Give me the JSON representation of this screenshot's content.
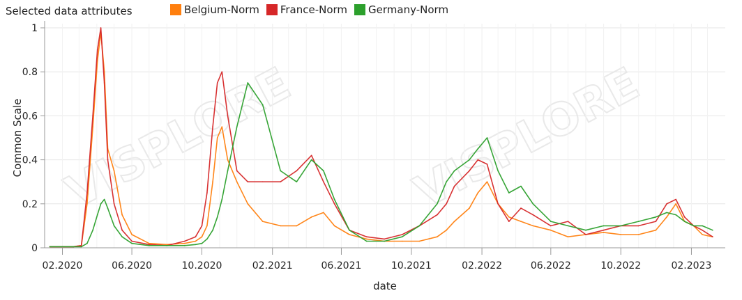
{
  "chart_data": {
    "type": "line",
    "title": "Selected data attributes",
    "xlabel": "date",
    "ylabel": "Common Scale",
    "ylim": [
      0,
      1
    ],
    "yticks": [
      "0",
      "0.2",
      "0.4",
      "0.6",
      "0.8",
      "1"
    ],
    "xlim": [
      "2020-01-01",
      "2023-04-01"
    ],
    "xticks": [
      "02.2020",
      "06.2020",
      "10.2020",
      "02.2021",
      "06.2021",
      "10.2021",
      "02.2022",
      "06.2022",
      "10.2022",
      "02.2023"
    ],
    "grid": true,
    "legend_position": "top",
    "watermark": "VISPLORE",
    "series": [
      {
        "name": "Belgium-Norm",
        "color": "#ff7f0e",
        "x": [
          "2020-01-10",
          "2020-02-20",
          "2020-03-05",
          "2020-03-15",
          "2020-03-25",
          "2020-04-02",
          "2020-04-08",
          "2020-04-14",
          "2020-04-20",
          "2020-05-01",
          "2020-05-15",
          "2020-06-01",
          "2020-07-01",
          "2020-08-01",
          "2020-09-01",
          "2020-09-20",
          "2020-10-01",
          "2020-10-10",
          "2020-10-20",
          "2020-10-28",
          "2020-11-05",
          "2020-11-15",
          "2020-12-01",
          "2020-12-20",
          "2021-01-15",
          "2021-02-15",
          "2021-03-15",
          "2021-04-10",
          "2021-05-01",
          "2021-05-20",
          "2021-06-15",
          "2021-07-15",
          "2021-08-15",
          "2021-09-15",
          "2021-10-15",
          "2021-11-15",
          "2021-12-01",
          "2021-12-15",
          "2022-01-10",
          "2022-01-25",
          "2022-02-10",
          "2022-03-01",
          "2022-03-20",
          "2022-04-10",
          "2022-05-01",
          "2022-06-01",
          "2022-07-01",
          "2022-08-01",
          "2022-09-01",
          "2022-10-01",
          "2022-11-01",
          "2022-12-01",
          "2022-12-20",
          "2023-01-05",
          "2023-01-20",
          "2023-02-05",
          "2023-02-20",
          "2023-03-10"
        ],
        "values": [
          0.005,
          0.005,
          0.01,
          0.2,
          0.55,
          0.85,
          0.98,
          0.8,
          0.45,
          0.35,
          0.15,
          0.06,
          0.02,
          0.015,
          0.02,
          0.03,
          0.05,
          0.1,
          0.3,
          0.5,
          0.55,
          0.4,
          0.3,
          0.2,
          0.12,
          0.1,
          0.1,
          0.14,
          0.16,
          0.1,
          0.06,
          0.04,
          0.03,
          0.03,
          0.03,
          0.05,
          0.08,
          0.12,
          0.18,
          0.25,
          0.3,
          0.2,
          0.14,
          0.12,
          0.1,
          0.08,
          0.05,
          0.06,
          0.07,
          0.06,
          0.06,
          0.08,
          0.14,
          0.2,
          0.12,
          0.1,
          0.06,
          0.05
        ]
      },
      {
        "name": "France-Norm",
        "color": "#d62728",
        "x": [
          "2020-01-10",
          "2020-02-20",
          "2020-03-05",
          "2020-03-15",
          "2020-03-25",
          "2020-04-02",
          "2020-04-08",
          "2020-04-14",
          "2020-04-20",
          "2020-05-01",
          "2020-05-15",
          "2020-06-01",
          "2020-07-01",
          "2020-08-01",
          "2020-09-01",
          "2020-09-20",
          "2020-10-01",
          "2020-10-10",
          "2020-10-20",
          "2020-10-28",
          "2020-11-05",
          "2020-11-15",
          "2020-12-01",
          "2020-12-20",
          "2021-01-15",
          "2021-02-15",
          "2021-03-15",
          "2021-04-10",
          "2021-05-01",
          "2021-05-20",
          "2021-06-15",
          "2021-07-15",
          "2021-08-15",
          "2021-09-15",
          "2021-10-15",
          "2021-11-15",
          "2021-12-01",
          "2021-12-15",
          "2022-01-10",
          "2022-01-25",
          "2022-02-10",
          "2022-03-01",
          "2022-03-20",
          "2022-04-10",
          "2022-05-01",
          "2022-06-01",
          "2022-07-01",
          "2022-08-01",
          "2022-09-01",
          "2022-10-01",
          "2022-11-01",
          "2022-12-01",
          "2022-12-20",
          "2023-01-05",
          "2023-01-20",
          "2023-02-05",
          "2023-02-20",
          "2023-03-10"
        ],
        "values": [
          0.005,
          0.005,
          0.01,
          0.25,
          0.6,
          0.9,
          1.0,
          0.75,
          0.4,
          0.2,
          0.08,
          0.03,
          0.015,
          0.01,
          0.03,
          0.05,
          0.1,
          0.25,
          0.55,
          0.75,
          0.8,
          0.6,
          0.35,
          0.3,
          0.3,
          0.3,
          0.35,
          0.42,
          0.3,
          0.2,
          0.08,
          0.05,
          0.04,
          0.06,
          0.1,
          0.15,
          0.2,
          0.28,
          0.35,
          0.4,
          0.38,
          0.2,
          0.12,
          0.18,
          0.15,
          0.1,
          0.12,
          0.06,
          0.08,
          0.1,
          0.1,
          0.12,
          0.2,
          0.22,
          0.14,
          0.1,
          0.08,
          0.05
        ]
      },
      {
        "name": "Germany-Norm",
        "color": "#2ca02c",
        "x": [
          "2020-01-10",
          "2020-02-20",
          "2020-03-05",
          "2020-03-15",
          "2020-03-25",
          "2020-04-02",
          "2020-04-08",
          "2020-04-14",
          "2020-04-20",
          "2020-05-01",
          "2020-05-15",
          "2020-06-01",
          "2020-07-01",
          "2020-08-01",
          "2020-09-01",
          "2020-09-20",
          "2020-10-01",
          "2020-10-10",
          "2020-10-20",
          "2020-10-28",
          "2020-11-05",
          "2020-11-15",
          "2020-12-01",
          "2020-12-20",
          "2021-01-15",
          "2021-02-15",
          "2021-03-15",
          "2021-04-10",
          "2021-05-01",
          "2021-05-20",
          "2021-06-15",
          "2021-07-15",
          "2021-08-15",
          "2021-09-15",
          "2021-10-15",
          "2021-11-15",
          "2021-12-01",
          "2021-12-15",
          "2022-01-10",
          "2022-01-25",
          "2022-02-10",
          "2022-03-01",
          "2022-03-20",
          "2022-04-10",
          "2022-05-01",
          "2022-06-01",
          "2022-07-01",
          "2022-08-01",
          "2022-09-01",
          "2022-10-01",
          "2022-11-01",
          "2022-12-01",
          "2022-12-20",
          "2023-01-05",
          "2023-01-20",
          "2023-02-05",
          "2023-02-20",
          "2023-03-10"
        ],
        "values": [
          0.005,
          0.005,
          0.005,
          0.02,
          0.08,
          0.15,
          0.2,
          0.22,
          0.18,
          0.1,
          0.05,
          0.02,
          0.01,
          0.01,
          0.01,
          0.015,
          0.02,
          0.04,
          0.08,
          0.14,
          0.22,
          0.35,
          0.55,
          0.75,
          0.65,
          0.35,
          0.3,
          0.4,
          0.35,
          0.22,
          0.08,
          0.03,
          0.03,
          0.05,
          0.1,
          0.2,
          0.3,
          0.35,
          0.4,
          0.45,
          0.5,
          0.35,
          0.25,
          0.28,
          0.2,
          0.12,
          0.1,
          0.08,
          0.1,
          0.1,
          0.12,
          0.14,
          0.16,
          0.15,
          0.12,
          0.1,
          0.1,
          0.08
        ]
      }
    ]
  }
}
